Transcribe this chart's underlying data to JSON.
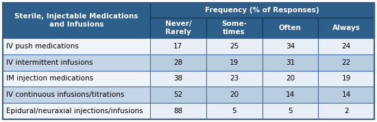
{
  "col_header_top": "Frequency (% of Responses)",
  "col_headers": [
    "Never/\nRarely",
    "Some-\ntimes",
    "Often",
    "Always"
  ],
  "row_header": "Sterile, Injectable Medications\nand Infusions",
  "rows": [
    [
      "IV push medications",
      17,
      25,
      34,
      24
    ],
    [
      "IV intermittent infusions",
      28,
      19,
      31,
      22
    ],
    [
      "IM injection medications",
      38,
      23,
      20,
      19
    ],
    [
      "IV continuous infusions/titrations",
      52,
      20,
      14,
      14
    ],
    [
      "Epidural/neuraxial injections/infusions",
      88,
      5,
      5,
      2
    ]
  ],
  "header_bg": "#2e5f8a",
  "header_text": "#ffffff",
  "row_bg_light": "#f0f4f8",
  "row_bg_blue": "#c5d5e8",
  "data_bg_light": "#e8eef5",
  "data_bg_blue": "#b8cde0",
  "border_color": "#4472a8",
  "outer_border": "#4472a8",
  "font_size_header": 7.5,
  "font_size_subheader": 7.5,
  "font_size_data": 7.5,
  "figw": 5.5,
  "figh": 1.79
}
